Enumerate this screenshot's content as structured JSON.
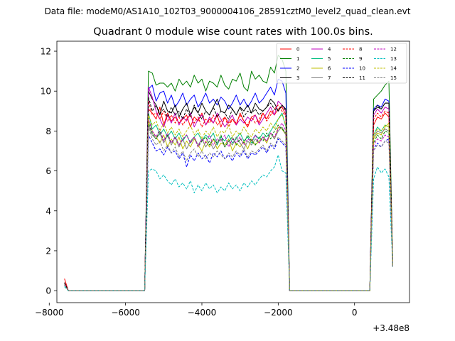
{
  "figure": {
    "suptitle": "Data file: modeM0/AS1A10_102T03_9000004106_28591cztM0_level2_quad_clean.evt"
  },
  "chart_data": {
    "type": "line",
    "title": "Quadrant 0 module wise count rates with 100.0s bins.",
    "xlabel": "",
    "ylabel": "",
    "x_offset_label": "+3.48e8",
    "xlim": [
      -7800,
      1440
    ],
    "ylim": [
      -0.6,
      12.5
    ],
    "x_ticks": [
      -8000,
      -6000,
      -4000,
      -2000,
      0
    ],
    "x_tick_labels": [
      "−8000",
      "−6000",
      "−4000",
      "−2000",
      "0"
    ],
    "y_ticks": [
      0,
      2,
      4,
      6,
      8,
      10,
      12
    ],
    "y_tick_labels": [
      "0",
      "2",
      "4",
      "6",
      "8",
      "10",
      "12"
    ],
    "legend": {
      "placement": "top-right",
      "columns": 4
    },
    "x": [
      -7600,
      -7500,
      -5500,
      -5400,
      -5300,
      -5200,
      -5100,
      -5000,
      -4900,
      -4800,
      -4700,
      -4600,
      -4500,
      -4400,
      -4300,
      -4200,
      -4100,
      -4000,
      -3900,
      -3800,
      -3700,
      -3600,
      -3500,
      -3400,
      -3300,
      -3200,
      -3100,
      -3000,
      -2900,
      -2800,
      -2700,
      -2600,
      -2500,
      -2400,
      -2300,
      -2200,
      -2100,
      -2000,
      -1900,
      -1800,
      -1700,
      400,
      500,
      600,
      700,
      800,
      900,
      1000
    ],
    "series": [
      {
        "name": "0",
        "color": "#ff0000",
        "dash": "solid",
        "values": [
          0.6,
          0.0,
          0.0,
          9.1,
          8.9,
          8.6,
          9.2,
          8.3,
          8.9,
          8.5,
          8.7,
          8.4,
          8.6,
          8.8,
          8.2,
          8.7,
          8.5,
          8.9,
          8.3,
          8.6,
          8.4,
          8.8,
          8.2,
          8.7,
          8.4,
          8.6,
          8.3,
          8.9,
          8.5,
          8.2,
          8.7,
          8.8,
          8.4,
          8.9,
          8.6,
          9.0,
          8.8,
          9.1,
          9.2,
          8.8,
          0.0,
          0.0,
          8.3,
          8.7,
          8.6,
          8.9,
          8.7,
          1.3
        ]
      },
      {
        "name": "1",
        "color": "#008000",
        "dash": "solid",
        "values": [
          0.4,
          0.0,
          0.0,
          11.0,
          10.9,
          10.3,
          10.4,
          10.4,
          10.2,
          10.4,
          10.0,
          10.6,
          10.3,
          10.5,
          10.2,
          10.8,
          10.4,
          10.6,
          10.0,
          10.5,
          10.4,
          10.2,
          10.8,
          10.3,
          10.1,
          10.6,
          10.5,
          10.9,
          10.2,
          10.0,
          11.0,
          10.6,
          10.8,
          10.5,
          10.4,
          11.2,
          10.9,
          11.8,
          11.6,
          11.0,
          0.0,
          0.0,
          9.6,
          9.8,
          10.0,
          10.3,
          10.5,
          1.4
        ]
      },
      {
        "name": "2",
        "color": "#0000ff",
        "dash": "solid",
        "values": [
          0.3,
          0.0,
          0.0,
          10.1,
          10.3,
          9.5,
          9.9,
          10.0,
          9.4,
          9.8,
          9.2,
          9.5,
          9.9,
          9.3,
          9.6,
          9.8,
          9.2,
          9.5,
          9.9,
          9.4,
          9.6,
          9.3,
          9.7,
          9.5,
          9.1,
          9.4,
          9.8,
          9.3,
          9.6,
          9.2,
          9.5,
          9.9,
          9.4,
          9.6,
          9.9,
          10.2,
          9.8,
          10.6,
          10.5,
          9.9,
          0.0,
          0.0,
          9.1,
          9.3,
          9.2,
          9.6,
          9.5,
          1.2
        ]
      },
      {
        "name": "3",
        "color": "#000000",
        "dash": "solid",
        "values": [
          0.4,
          0.0,
          0.0,
          10.0,
          9.6,
          9.3,
          8.8,
          9.5,
          9.0,
          8.9,
          9.3,
          8.7,
          9.1,
          9.4,
          8.8,
          9.2,
          8.9,
          9.4,
          9.0,
          8.8,
          9.2,
          9.6,
          9.0,
          8.9,
          9.3,
          9.1,
          8.8,
          9.2,
          9.0,
          9.3,
          8.9,
          9.4,
          9.1,
          9.0,
          9.2,
          9.6,
          9.4,
          9.0,
          9.3,
          9.1,
          0.0,
          0.0,
          9.0,
          9.2,
          9.1,
          9.4,
          9.4,
          1.3
        ]
      },
      {
        "name": "4",
        "color": "#bf00bf",
        "dash": "solid",
        "values": [
          0.4,
          0.0,
          0.0,
          10.2,
          9.7,
          9.0,
          8.6,
          8.2,
          8.8,
          8.4,
          8.9,
          8.3,
          8.7,
          8.5,
          8.9,
          8.2,
          8.6,
          8.8,
          8.3,
          8.7,
          8.4,
          8.9,
          8.6,
          8.2,
          8.5,
          8.8,
          8.3,
          8.6,
          8.4,
          8.7,
          8.5,
          8.8,
          8.3,
          8.6,
          8.9,
          9.2,
          8.8,
          9.5,
          9.3,
          9.0,
          0.0,
          0.0,
          8.8,
          9.1,
          8.9,
          9.2,
          9.1,
          1.2
        ]
      },
      {
        "name": "5",
        "color": "#00bf7f",
        "dash": "solid",
        "values": [
          0.3,
          0.0,
          0.0,
          8.9,
          8.1,
          8.3,
          7.8,
          8.1,
          7.7,
          8.0,
          7.6,
          7.9,
          7.5,
          7.8,
          7.4,
          7.7,
          7.9,
          7.5,
          7.8,
          7.6,
          7.9,
          7.3,
          7.7,
          7.5,
          7.8,
          7.4,
          7.6,
          7.9,
          7.5,
          7.7,
          7.4,
          7.8,
          7.6,
          7.9,
          7.7,
          8.0,
          8.3,
          8.6,
          8.9,
          8.2,
          0.0,
          0.0,
          7.8,
          8.2,
          8.0,
          8.3,
          8.2,
          1.2
        ]
      },
      {
        "name": "6",
        "color": "#bfbf00",
        "dash": "solid",
        "values": [
          0.3,
          0.0,
          0.0,
          8.6,
          8.0,
          7.7,
          7.4,
          7.8,
          7.2,
          7.6,
          7.3,
          7.7,
          7.1,
          7.5,
          7.2,
          7.6,
          7.3,
          7.0,
          7.5,
          7.2,
          7.6,
          7.1,
          7.4,
          7.3,
          7.6,
          7.0,
          7.4,
          7.2,
          7.5,
          7.1,
          7.6,
          7.3,
          7.5,
          7.7,
          7.4,
          7.9,
          7.6,
          8.2,
          8.1,
          7.8,
          0.0,
          0.0,
          7.6,
          7.9,
          7.8,
          8.2,
          8.4,
          1.2
        ]
      },
      {
        "name": "7",
        "color": "#808080",
        "dash": "solid",
        "values": [
          0.3,
          0.0,
          0.0,
          8.3,
          7.8,
          7.6,
          7.9,
          7.4,
          7.8,
          7.3,
          7.7,
          7.2,
          7.6,
          7.1,
          7.5,
          7.7,
          7.3,
          7.6,
          7.2,
          7.5,
          7.1,
          7.4,
          7.6,
          7.2,
          7.5,
          7.3,
          7.7,
          7.4,
          7.1,
          7.5,
          7.3,
          7.6,
          7.4,
          7.7,
          7.5,
          7.9,
          7.6,
          8.0,
          8.2,
          7.8,
          0.0,
          0.0,
          7.7,
          8.0,
          7.9,
          8.1,
          8.0,
          1.2
        ]
      },
      {
        "name": "8",
        "color": "#ff0000",
        "dash": "dashed",
        "values": [
          0.4,
          0.0,
          0.0,
          9.5,
          8.8,
          8.9,
          8.6,
          9.0,
          8.5,
          8.8,
          8.4,
          8.7,
          8.3,
          8.6,
          8.8,
          8.4,
          8.7,
          8.2,
          8.6,
          8.4,
          8.8,
          8.3,
          8.5,
          8.7,
          8.2,
          8.6,
          8.4,
          8.8,
          8.5,
          8.3,
          8.7,
          8.4,
          8.6,
          8.9,
          8.5,
          8.8,
          9.1,
          9.3,
          9.0,
          8.7,
          0.0,
          0.0,
          8.6,
          8.9,
          8.7,
          9.0,
          8.9,
          1.3
        ]
      },
      {
        "name": "9",
        "color": "#008000",
        "dash": "dashed",
        "values": [
          0.3,
          0.0,
          0.0,
          8.4,
          7.9,
          7.6,
          8.0,
          7.5,
          7.8,
          7.4,
          7.7,
          7.3,
          7.6,
          7.8,
          7.4,
          7.7,
          7.2,
          7.5,
          7.7,
          7.3,
          7.6,
          7.4,
          7.8,
          7.2,
          7.5,
          7.7,
          7.3,
          7.6,
          7.4,
          7.8,
          7.5,
          7.3,
          7.7,
          7.5,
          7.9,
          7.6,
          8.0,
          8.3,
          8.1,
          7.9,
          0.0,
          0.0,
          7.4,
          7.8,
          7.6,
          8.0,
          7.9,
          1.2
        ]
      },
      {
        "name": "10",
        "color": "#0000ff",
        "dash": "dashed",
        "values": [
          0.3,
          0.0,
          0.0,
          7.8,
          7.4,
          7.0,
          7.1,
          6.8,
          7.2,
          6.9,
          7.0,
          6.6,
          6.9,
          6.2,
          6.8,
          6.5,
          6.9,
          6.6,
          6.8,
          6.4,
          6.9,
          6.7,
          7.0,
          6.6,
          6.8,
          6.5,
          6.9,
          6.7,
          7.0,
          6.6,
          6.9,
          6.8,
          7.0,
          7.2,
          6.9,
          7.3,
          7.1,
          7.6,
          7.4,
          7.2,
          0.0,
          0.0,
          7.1,
          7.4,
          7.2,
          7.5,
          7.6,
          1.2
        ]
      },
      {
        "name": "11",
        "color": "#000000",
        "dash": "dashed",
        "values": [
          0.4,
          0.0,
          0.0,
          9.7,
          9.0,
          9.3,
          8.9,
          9.1,
          8.7,
          9.2,
          8.8,
          9.0,
          8.6,
          9.1,
          8.7,
          9.3,
          8.9,
          8.6,
          9.0,
          8.8,
          9.2,
          8.7,
          9.0,
          8.9,
          8.6,
          9.1,
          8.8,
          9.2,
          8.7,
          9.0,
          8.9,
          9.1,
          8.8,
          9.0,
          9.2,
          9.4,
          9.1,
          9.0,
          9.3,
          9.0,
          0.0,
          0.0,
          9.0,
          9.3,
          9.1,
          9.4,
          9.4,
          1.3
        ]
      },
      {
        "name": "12",
        "color": "#bf00bf",
        "dash": "dashed",
        "values": [
          0.3,
          0.0,
          0.0,
          8.6,
          8.0,
          7.7,
          8.1,
          7.5,
          7.9,
          7.4,
          7.7,
          7.3,
          7.6,
          7.8,
          7.4,
          7.7,
          7.2,
          7.6,
          7.4,
          7.8,
          7.3,
          7.6,
          7.5,
          7.8,
          7.2,
          7.6,
          7.4,
          7.7,
          7.3,
          7.6,
          7.5,
          7.8,
          7.4,
          7.7,
          7.5,
          7.9,
          7.7,
          8.1,
          8.4,
          8.0,
          0.0,
          0.0,
          7.3,
          7.6,
          7.5,
          7.8,
          7.7,
          1.2
        ]
      },
      {
        "name": "13",
        "color": "#00bfbf",
        "dash": "dashed",
        "values": [
          0.2,
          0.0,
          0.0,
          6.0,
          6.1,
          6.0,
          5.6,
          5.8,
          5.5,
          5.3,
          5.6,
          5.2,
          5.4,
          5.1,
          5.5,
          4.9,
          5.3,
          5.0,
          5.4,
          5.1,
          5.3,
          4.9,
          5.2,
          5.0,
          5.4,
          5.1,
          5.3,
          5.0,
          5.4,
          5.2,
          5.5,
          5.3,
          5.6,
          5.8,
          5.7,
          6.0,
          6.2,
          6.8,
          6.0,
          5.9,
          0.0,
          0.0,
          5.6,
          6.2,
          5.9,
          6.1,
          5.7,
          1.2
        ]
      },
      {
        "name": "14",
        "color": "#bfbf00",
        "dash": "dashed",
        "values": [
          0.3,
          0.0,
          0.0,
          8.8,
          8.3,
          8.5,
          8.0,
          8.4,
          7.9,
          8.2,
          7.8,
          8.1,
          7.7,
          8.0,
          8.3,
          7.8,
          8.1,
          7.6,
          8.0,
          7.8,
          8.2,
          7.7,
          8.0,
          7.9,
          8.3,
          7.7,
          8.0,
          7.8,
          8.2,
          7.9,
          7.7,
          8.1,
          7.9,
          8.2,
          8.0,
          8.4,
          8.1,
          8.6,
          8.8,
          8.3,
          0.0,
          0.0,
          7.8,
          8.1,
          8.0,
          8.3,
          8.2,
          1.2
        ]
      },
      {
        "name": "15",
        "color": "#808080",
        "dash": "dashed",
        "values": [
          0.3,
          0.0,
          0.0,
          8.2,
          7.6,
          7.3,
          7.5,
          7.0,
          7.3,
          6.9,
          7.2,
          6.7,
          7.0,
          6.5,
          6.9,
          7.1,
          6.7,
          7.0,
          6.6,
          6.9,
          6.7,
          7.0,
          6.8,
          6.6,
          6.9,
          6.7,
          7.0,
          6.8,
          7.1,
          6.7,
          7.0,
          6.9,
          7.1,
          7.3,
          7.0,
          7.4,
          7.2,
          7.7,
          7.5,
          7.3,
          0.0,
          0.0,
          7.0,
          7.3,
          7.2,
          7.5,
          7.4,
          1.2
        ]
      }
    ]
  }
}
